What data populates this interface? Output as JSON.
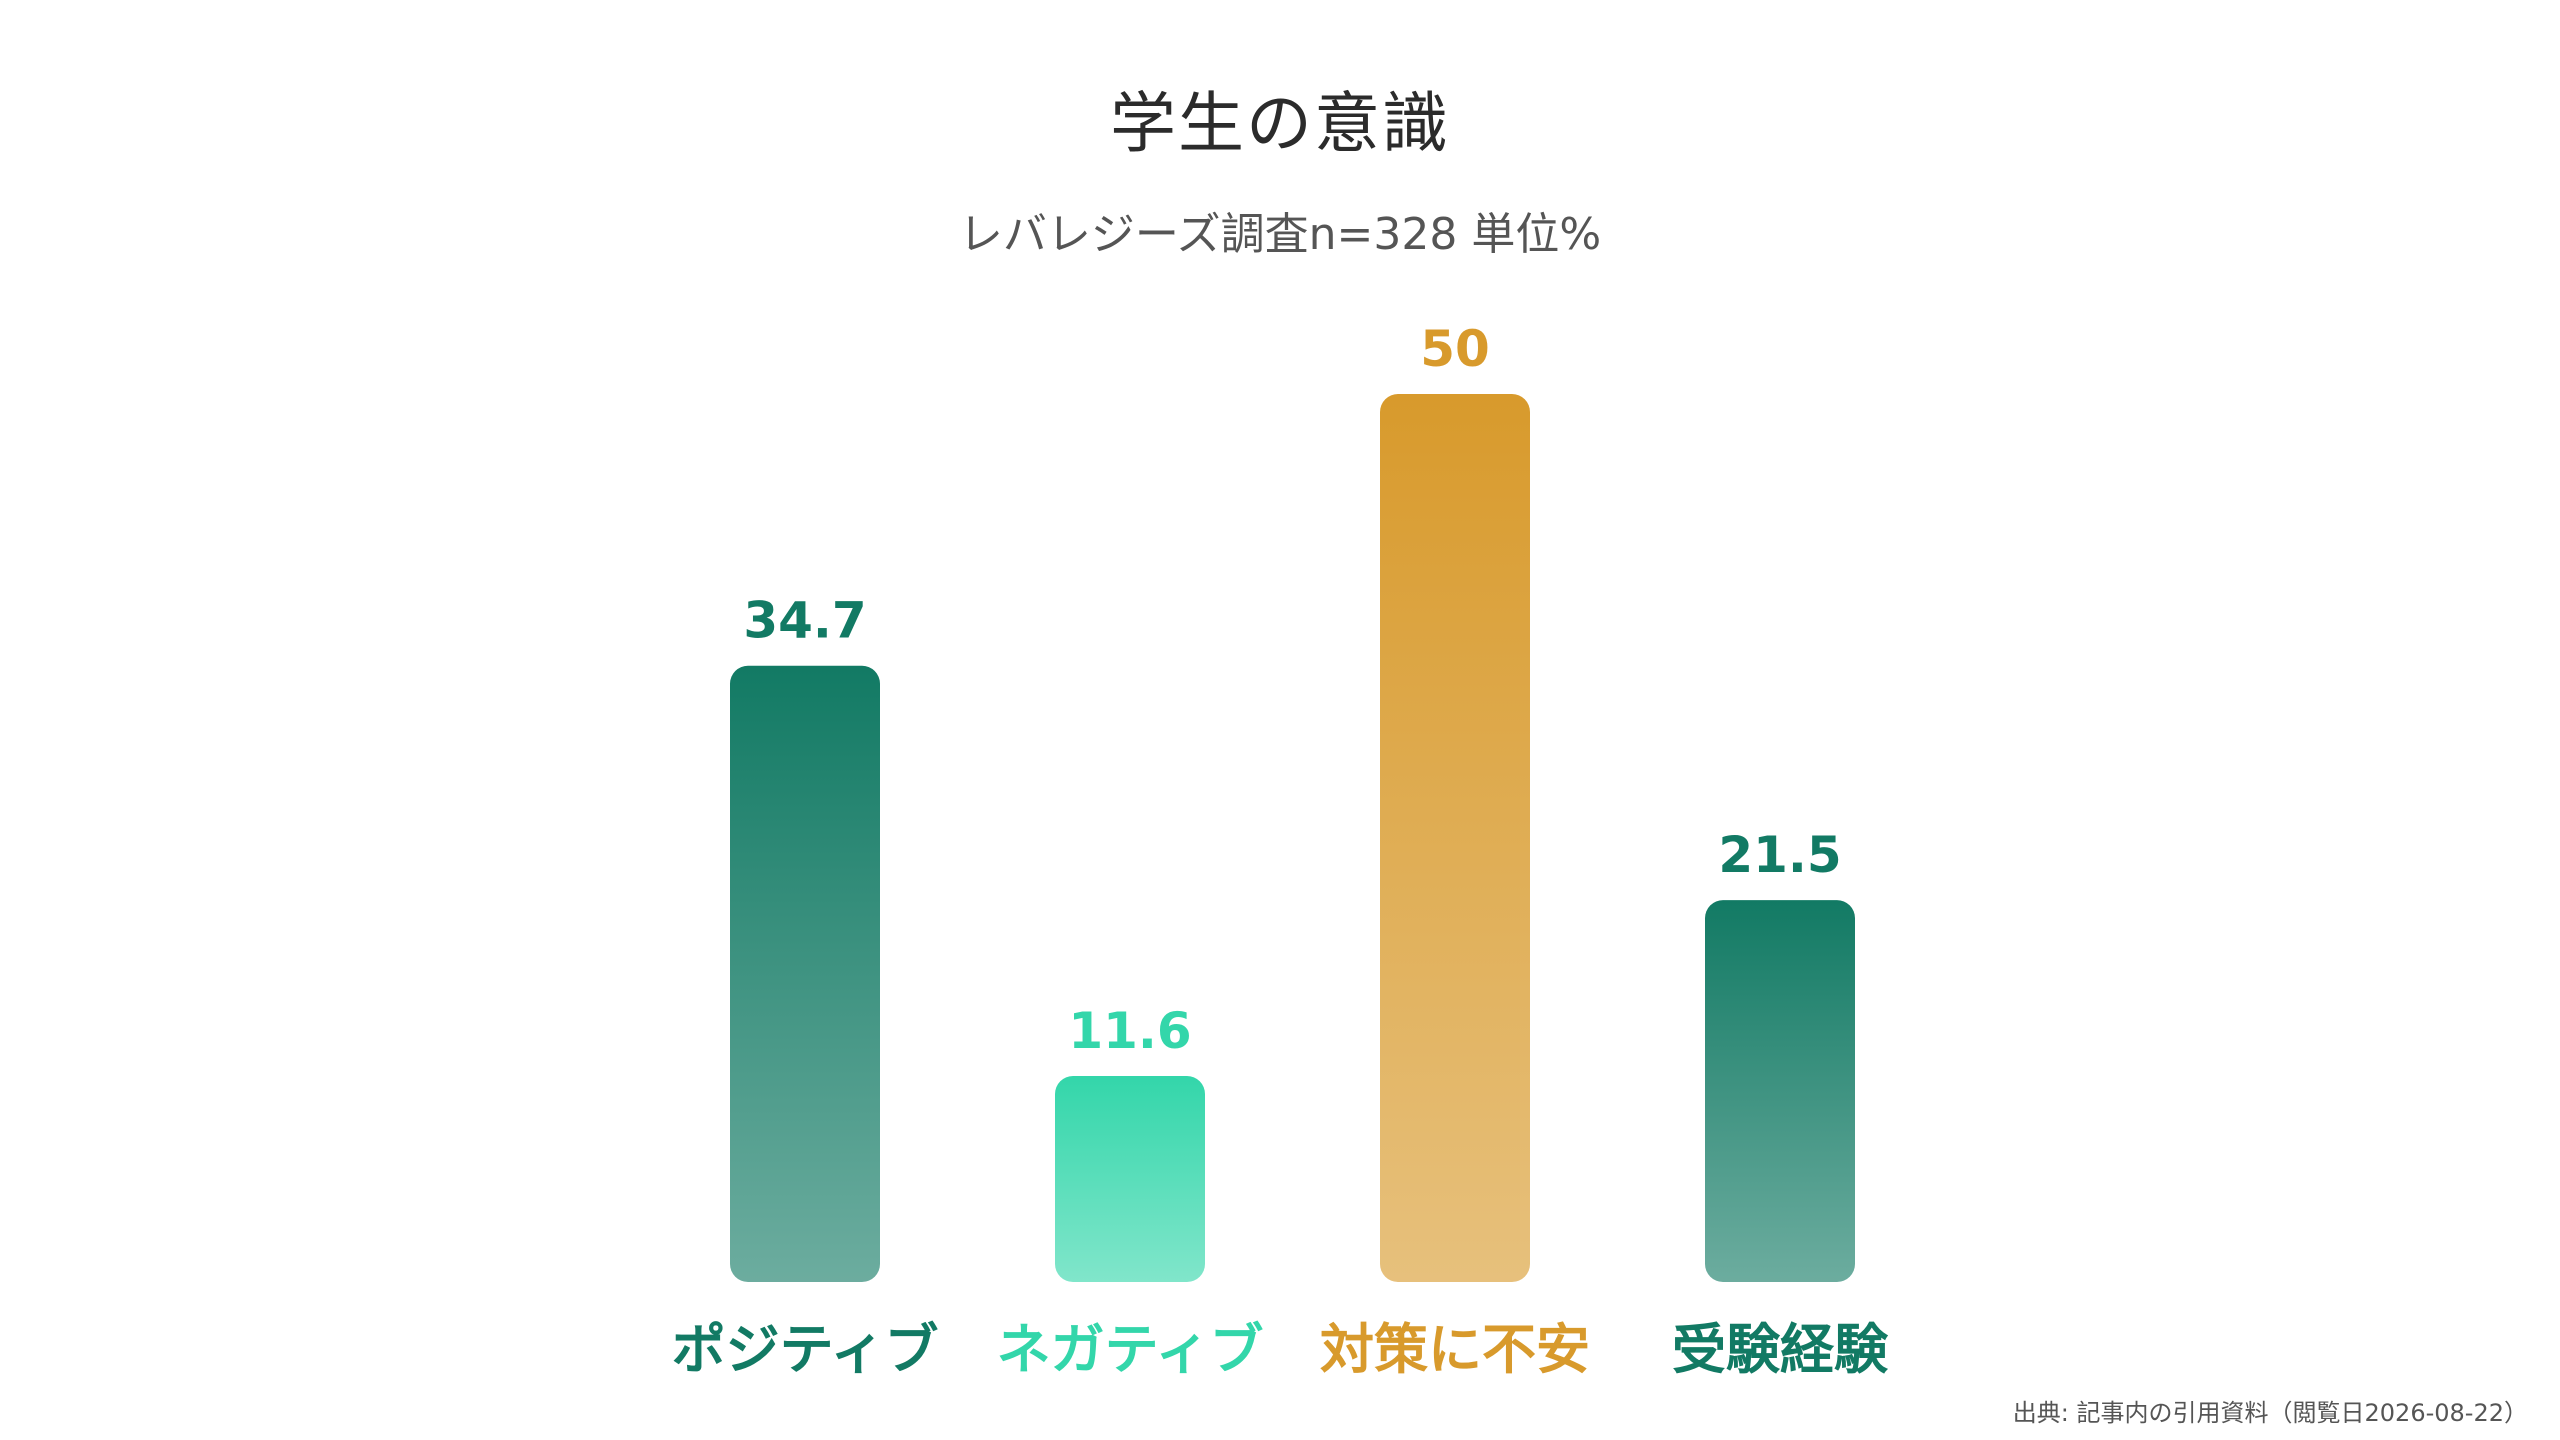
{
  "chart_data": {
    "type": "bar",
    "title": "学生の意識",
    "subtitle": "レバレジーズ調査n=328 単位%",
    "categories": [
      "ポジティブ",
      "ネガティブ",
      "対策に不安",
      "受験経験"
    ],
    "values": [
      34.7,
      11.6,
      50,
      21.5
    ],
    "value_labels": [
      "34.7",
      "11.6",
      "50",
      "21.5"
    ],
    "colors": [
      "#127a64",
      "#33d6aa",
      "#d89a2c",
      "#127a64"
    ],
    "ylim": [
      0,
      50
    ],
    "grid": false,
    "legend": "none"
  },
  "source": "出典: 記事内の引用資料（閲覧日2026-08-22）"
}
